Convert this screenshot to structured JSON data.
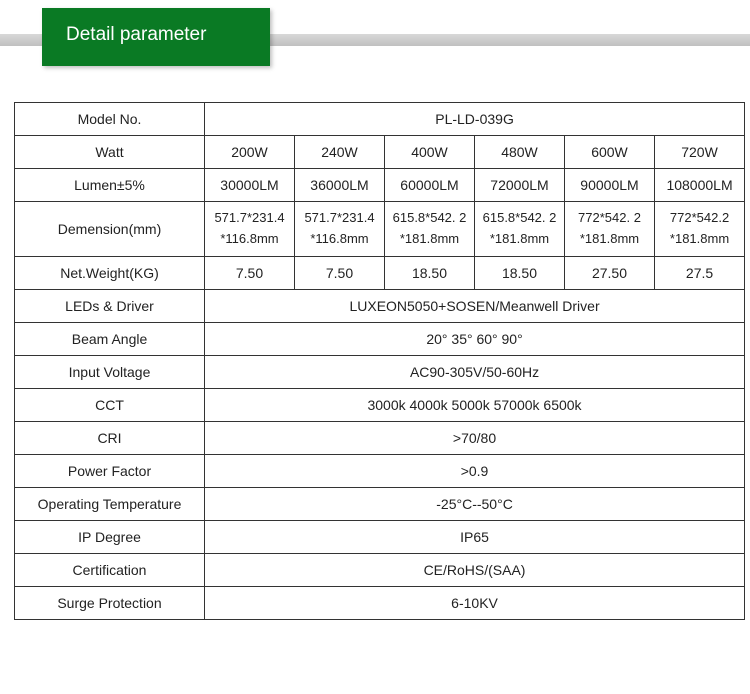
{
  "header": {
    "title": "Detail parameter"
  },
  "colors": {
    "tab_bg": "#0a7a24",
    "tab_text": "#ffffff",
    "stripe": "#c9c9c9",
    "border": "#333333"
  },
  "table": {
    "model_label": "Model No.",
    "model_value": "PL-LD-039G",
    "watt_label": "Watt",
    "watt": [
      "200W",
      "240W",
      "400W",
      "480W",
      "600W",
      "720W"
    ],
    "lumen_label": "Lumen±5%",
    "lumen": [
      "30000LM",
      "36000LM",
      "60000LM",
      "72000LM",
      "90000LM",
      "108000LM"
    ],
    "dimension_label": "Demension(mm)",
    "dimension_l1": [
      "571.7*231.4",
      "571.7*231.4",
      "615.8*542. 2",
      "615.8*542. 2",
      "772*542. 2",
      "772*542.2"
    ],
    "dimension_l2": [
      "*116.8mm",
      "*116.8mm",
      "*181.8mm",
      "*181.8mm",
      "*181.8mm",
      "*181.8mm"
    ],
    "weight_label": "Net.Weight(KG)",
    "weight": [
      "7.50",
      "7.50",
      "18.50",
      "18.50",
      "27.50",
      "27.5"
    ],
    "rows_full": [
      {
        "label": "LEDs & Driver",
        "value": "LUXEON5050+SOSEN/Meanwell Driver"
      },
      {
        "label": "Beam Angle",
        "value": "20° 35° 60° 90°"
      },
      {
        "label": "Input Voltage",
        "value": "AC90-305V/50-60Hz"
      },
      {
        "label": "CCT",
        "value": "3000k 4000k 5000k 57000k 6500k"
      },
      {
        "label": "CRI",
        "value": ">70/80"
      },
      {
        "label": "Power Factor",
        "value": ">0.9"
      },
      {
        "label": "Operating Temperature",
        "value": "-25°C--50°C"
      },
      {
        "label": "IP Degree",
        "value": "IP65"
      },
      {
        "label": "Certification",
        "value": "CE/RoHS/(SAA)"
      },
      {
        "label": "Surge Protection",
        "value": "6-10KV"
      }
    ]
  }
}
